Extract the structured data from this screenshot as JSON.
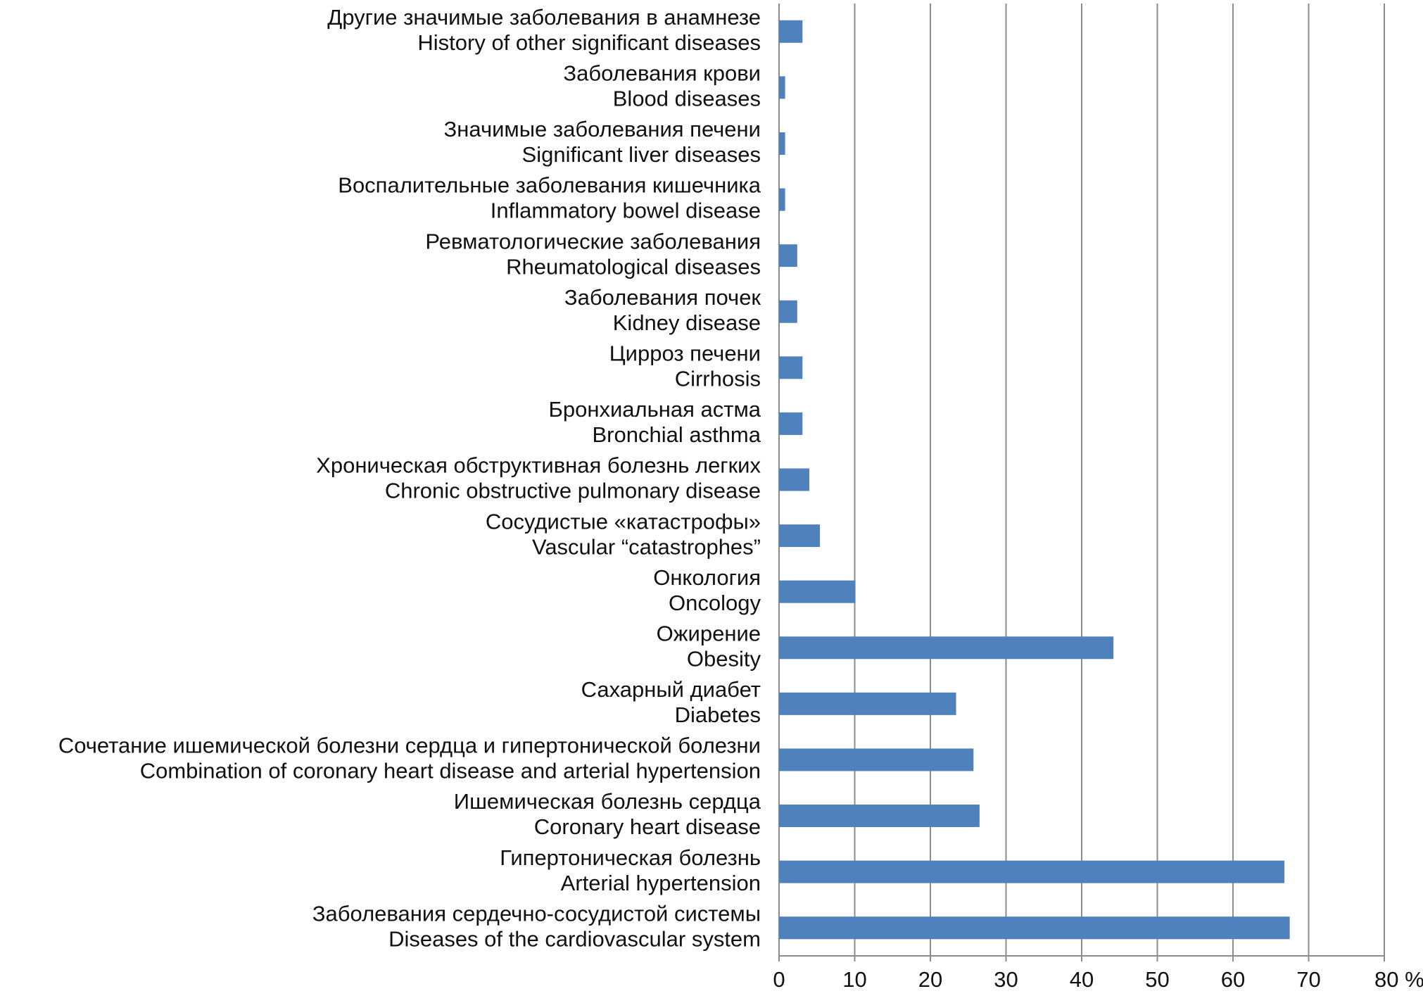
{
  "chart_data": {
    "type": "bar",
    "orientation": "horizontal",
    "color": "#4f81bd",
    "grid": true,
    "categories": [
      [
        "Другие значимые заболевания в анамнезе",
        "History of other significant diseases"
      ],
      [
        "Заболевания крови",
        "Blood diseases"
      ],
      [
        "Значимые заболевания печени",
        "Significant liver diseases"
      ],
      [
        "Воспалительные заболевания кишечника",
        "Inflammatory bowel disease"
      ],
      [
        "Ревматологические заболевания",
        "Rheumatological diseases"
      ],
      [
        "Заболевания почек",
        "Kidney disease"
      ],
      [
        "Цирроз печени",
        "Cirrhosis"
      ],
      [
        "Бронхиальная астма",
        "Bronchial asthma"
      ],
      [
        "Хроническая обструктивная болезнь легких",
        "Chronic obstructive pulmonary disease"
      ],
      [
        "Сосудистые «катастрофы»",
        "Vascular “catastrophes”"
      ],
      [
        "Онкология",
        "Oncology"
      ],
      [
        "Ожирение",
        "Obesity"
      ],
      [
        "Сахарный диабет",
        "Diabetes"
      ],
      [
        "Сочетание ишемической болезни сердца и гипертонической болезни",
        "Combination of coronary heart disease and arterial hypertension"
      ],
      [
        "Ишемическая болезнь сердца",
        "Coronary heart disease"
      ],
      [
        "Гипертоническая болезнь",
        "Arterial hypertension"
      ],
      [
        "Заболевания сердечно-сосудистой системы",
        "Diseases of the cardiovascular system"
      ]
    ],
    "values": [
      3.1,
      0.8,
      0.8,
      0.8,
      2.4,
      2.4,
      3.1,
      3.1,
      4.0,
      5.4,
      10.1,
      44.2,
      23.4,
      25.7,
      26.5,
      66.8,
      67.5
    ],
    "xlim": [
      0,
      80
    ],
    "xticks": [
      0,
      10,
      20,
      30,
      40,
      50,
      60,
      70,
      {
        "value": 80,
        "label": "80 %"
      }
    ]
  }
}
